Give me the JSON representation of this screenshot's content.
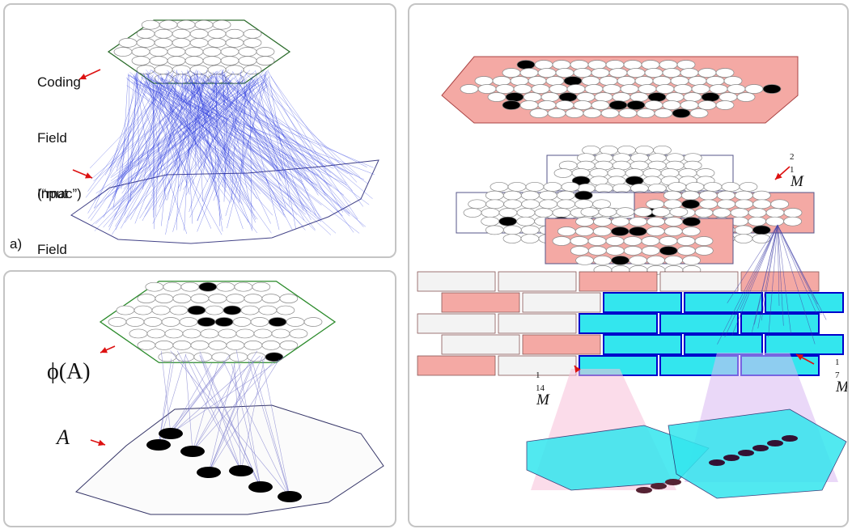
{
  "panel_a": {
    "coding_field_label_lines": [
      "Coding",
      "Field",
      "(“mac”)"
    ],
    "input_field_label_lines": [
      "Input",
      "Field"
    ],
    "panel_letter": "a)"
  },
  "panel_b": {
    "phi_label": "ϕ(A)",
    "a_label": "A"
  },
  "panel_c": {
    "m12": {
      "base": "M",
      "sub": "1",
      "sup": "2"
    },
    "m114": {
      "base": "M",
      "sub": "14",
      "sup": "1"
    },
    "m71": {
      "base": "M",
      "sub": "7",
      "sup": "1"
    }
  },
  "colors": {
    "panel_border": "#c4c4c4",
    "blue_edges": "#2233dd",
    "arrow_red": "#dd1111",
    "salmon": "#f4a9a4",
    "cyan": "#33e6ee",
    "pink_cone": "#f7c0d8",
    "purple_cone": "#d9b8f2",
    "black_cell": "#000000"
  }
}
